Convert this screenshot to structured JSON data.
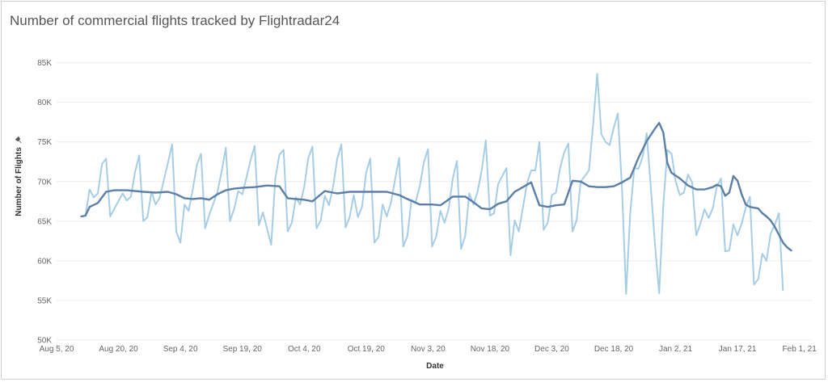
{
  "title": "Number of commercial flights tracked by Flightradar24",
  "chart_data": {
    "type": "line",
    "title": "Number of commercial flights tracked by Flightradar24",
    "xlabel": "Date",
    "ylabel": "Number of Flights",
    "x_range": [
      "2020-08-05",
      "2021-02-04"
    ],
    "ylim": [
      50000,
      87000
    ],
    "y_ticks": [
      50000,
      55000,
      60000,
      65000,
      70000,
      75000,
      80000,
      85000
    ],
    "y_tick_labels": [
      "50K",
      "55K",
      "60K",
      "65K",
      "70K",
      "75K",
      "80K",
      "85K"
    ],
    "x_ticks": [
      "2020-08-05",
      "2020-08-20",
      "2020-09-04",
      "2020-09-19",
      "2020-10-04",
      "2020-10-19",
      "2020-11-03",
      "2020-11-18",
      "2020-12-03",
      "2020-12-18",
      "2021-01-02",
      "2021-01-17",
      "2021-02-01"
    ],
    "x_tick_labels": [
      "Aug 5, 20",
      "Aug 20, 20",
      "Sep 4, 20",
      "Sep 19, 20",
      "Oct 4, 20",
      "Oct 19, 20",
      "Nov 3, 20",
      "Nov 18, 20",
      "Dec 3, 20",
      "Dec 18, 20",
      "Jan 2, 21",
      "Jan 17, 21",
      "Feb 1, 21"
    ],
    "grid": "horizontal",
    "series": [
      {
        "name": "",
        "color": "#a6cde6",
        "points": [
          [
            "2020-08-11",
            65600
          ],
          [
            "2020-08-12",
            65700
          ],
          [
            "2020-08-13",
            69000
          ],
          [
            "2020-08-14",
            68000
          ],
          [
            "2020-08-15",
            68500
          ],
          [
            "2020-08-16",
            72200
          ],
          [
            "2020-08-17",
            72900
          ],
          [
            "2020-08-18",
            65600
          ],
          [
            "2020-08-19",
            66600
          ],
          [
            "2020-08-21",
            68500
          ],
          [
            "2020-08-22",
            67600
          ],
          [
            "2020-08-23",
            68100
          ],
          [
            "2020-08-24",
            71200
          ],
          [
            "2020-08-25",
            73300
          ],
          [
            "2020-08-26",
            65000
          ],
          [
            "2020-08-27",
            65500
          ],
          [
            "2020-08-28",
            68700
          ],
          [
            "2020-08-29",
            67100
          ],
          [
            "2020-08-30",
            68000
          ],
          [
            "2020-09-01",
            72400
          ],
          [
            "2020-09-02",
            74700
          ],
          [
            "2020-09-03",
            63700
          ],
          [
            "2020-09-04",
            62300
          ],
          [
            "2020-09-05",
            67100
          ],
          [
            "2020-09-06",
            66300
          ],
          [
            "2020-09-07",
            69000
          ],
          [
            "2020-09-08",
            72100
          ],
          [
            "2020-09-09",
            73500
          ],
          [
            "2020-09-10",
            64100
          ],
          [
            "2020-09-11",
            65800
          ],
          [
            "2020-09-13",
            68700
          ],
          [
            "2020-09-14",
            71300
          ],
          [
            "2020-09-15",
            74300
          ],
          [
            "2020-09-16",
            65000
          ],
          [
            "2020-09-17",
            66500
          ],
          [
            "2020-09-18",
            68800
          ],
          [
            "2020-09-19",
            68400
          ],
          [
            "2020-09-20",
            70500
          ],
          [
            "2020-09-21",
            72700
          ],
          [
            "2020-09-22",
            74500
          ],
          [
            "2020-09-23",
            64500
          ],
          [
            "2020-09-24",
            66100
          ],
          [
            "2020-09-26",
            62000
          ],
          [
            "2020-09-27",
            70400
          ],
          [
            "2020-09-28",
            73400
          ],
          [
            "2020-09-29",
            74000
          ],
          [
            "2020-09-30",
            63700
          ],
          [
            "2020-10-01",
            64800
          ],
          [
            "2020-10-02",
            68000
          ],
          [
            "2020-10-03",
            67100
          ],
          [
            "2020-10-04",
            69300
          ],
          [
            "2020-10-05",
            73000
          ],
          [
            "2020-10-06",
            74400
          ],
          [
            "2020-10-07",
            64100
          ],
          [
            "2020-10-08",
            65100
          ],
          [
            "2020-10-09",
            68200
          ],
          [
            "2020-10-10",
            67000
          ],
          [
            "2020-10-11",
            69400
          ],
          [
            "2020-10-12",
            72900
          ],
          [
            "2020-10-13",
            74700
          ],
          [
            "2020-10-14",
            64200
          ],
          [
            "2020-10-15",
            65500
          ],
          [
            "2020-10-16",
            68300
          ],
          [
            "2020-10-17",
            65500
          ],
          [
            "2020-10-18",
            66800
          ],
          [
            "2020-10-19",
            71100
          ],
          [
            "2020-10-20",
            72900
          ],
          [
            "2020-10-21",
            62300
          ],
          [
            "2020-10-22",
            63000
          ],
          [
            "2020-10-23",
            67100
          ],
          [
            "2020-10-24",
            65600
          ],
          [
            "2020-10-25",
            67300
          ],
          [
            "2020-10-26",
            70200
          ],
          [
            "2020-10-27",
            73000
          ],
          [
            "2020-10-28",
            61800
          ],
          [
            "2020-10-29",
            63100
          ],
          [
            "2020-10-30",
            67700
          ],
          [
            "2020-10-31",
            67400
          ],
          [
            "2020-11-01",
            69400
          ],
          [
            "2020-11-02",
            72400
          ],
          [
            "2020-11-03",
            74100
          ],
          [
            "2020-11-04",
            61800
          ],
          [
            "2020-11-05",
            63100
          ],
          [
            "2020-11-06",
            66300
          ],
          [
            "2020-11-07",
            64800
          ],
          [
            "2020-11-08",
            66600
          ],
          [
            "2020-11-09",
            70400
          ],
          [
            "2020-11-10",
            72600
          ],
          [
            "2020-11-11",
            61500
          ],
          [
            "2020-11-12",
            63100
          ],
          [
            "2020-11-13",
            68500
          ],
          [
            "2020-11-14",
            67100
          ],
          [
            "2020-11-15",
            68700
          ],
          [
            "2020-11-16",
            71400
          ],
          [
            "2020-11-17",
            75200
          ],
          [
            "2020-11-18",
            65700
          ],
          [
            "2020-11-19",
            66000
          ],
          [
            "2020-11-20",
            69700
          ],
          [
            "2020-11-21",
            70700
          ],
          [
            "2020-11-22",
            71700
          ],
          [
            "2020-11-23",
            60700
          ],
          [
            "2020-11-24",
            65100
          ],
          [
            "2020-11-25",
            63700
          ],
          [
            "2020-11-26",
            66700
          ],
          [
            "2020-11-27",
            69800
          ],
          [
            "2020-11-28",
            71400
          ],
          [
            "2020-11-29",
            71400
          ],
          [
            "2020-11-30",
            75000
          ],
          [
            "2020-12-01",
            63900
          ],
          [
            "2020-12-02",
            64800
          ],
          [
            "2020-12-03",
            68300
          ],
          [
            "2020-12-04",
            68600
          ],
          [
            "2020-12-05",
            71700
          ],
          [
            "2020-12-06",
            73700
          ],
          [
            "2020-12-07",
            74800
          ],
          [
            "2020-12-08",
            63700
          ],
          [
            "2020-12-09",
            65100
          ],
          [
            "2020-12-10",
            70000
          ],
          [
            "2020-12-11",
            70700
          ],
          [
            "2020-12-12",
            71400
          ],
          [
            "2020-12-13",
            77200
          ],
          [
            "2020-12-14",
            83600
          ],
          [
            "2020-12-15",
            76000
          ],
          [
            "2020-12-16",
            75000
          ],
          [
            "2020-12-17",
            74600
          ],
          [
            "2020-12-18",
            76800
          ],
          [
            "2020-12-19",
            78600
          ],
          [
            "2020-12-20",
            69200
          ],
          [
            "2020-12-21",
            55800
          ],
          [
            "2020-12-22",
            66000
          ],
          [
            "2020-12-23",
            71700
          ],
          [
            "2020-12-24",
            71600
          ],
          [
            "2020-12-25",
            73100
          ],
          [
            "2020-12-26",
            76100
          ],
          [
            "2020-12-27",
            69100
          ],
          [
            "2020-12-28",
            62000
          ],
          [
            "2020-12-29",
            55900
          ],
          [
            "2020-12-30",
            67000
          ],
          [
            "2020-12-31",
            74000
          ],
          [
            "2021-01-01",
            73500
          ],
          [
            "2021-01-02",
            70000
          ],
          [
            "2021-01-03",
            68300
          ],
          [
            "2021-01-04",
            68600
          ],
          [
            "2021-01-05",
            70900
          ],
          [
            "2021-01-06",
            69900
          ],
          [
            "2021-01-07",
            63200
          ],
          [
            "2021-01-08",
            64700
          ],
          [
            "2021-01-09",
            66500
          ],
          [
            "2021-01-10",
            65400
          ],
          [
            "2021-01-11",
            66600
          ],
          [
            "2021-01-12",
            69400
          ],
          [
            "2021-01-13",
            70400
          ],
          [
            "2021-01-14",
            61200
          ],
          [
            "2021-01-15",
            61300
          ],
          [
            "2021-01-16",
            64600
          ],
          [
            "2021-01-17",
            63200
          ],
          [
            "2021-01-18",
            64700
          ],
          [
            "2021-01-19",
            66700
          ],
          [
            "2021-01-20",
            68100
          ],
          [
            "2021-01-21",
            57000
          ],
          [
            "2021-01-22",
            57700
          ],
          [
            "2021-01-23",
            60900
          ],
          [
            "2021-01-24",
            60000
          ],
          [
            "2021-01-25",
            63400
          ],
          [
            "2021-01-26",
            64500
          ],
          [
            "2021-01-27",
            66000
          ],
          [
            "2021-01-28",
            56300
          ]
        ]
      },
      {
        "name": "",
        "color": "#5b7fa6",
        "points": [
          [
            "2020-08-11",
            65600
          ],
          [
            "2020-08-12",
            65700
          ],
          [
            "2020-08-13",
            66800
          ],
          [
            "2020-08-15",
            67300
          ],
          [
            "2020-08-17",
            68700
          ],
          [
            "2020-08-19",
            68900
          ],
          [
            "2020-08-22",
            68900
          ],
          [
            "2020-08-26",
            68700
          ],
          [
            "2020-08-29",
            68600
          ],
          [
            "2020-09-01",
            68700
          ],
          [
            "2020-09-03",
            68400
          ],
          [
            "2020-09-05",
            67900
          ],
          [
            "2020-09-07",
            67800
          ],
          [
            "2020-09-09",
            67900
          ],
          [
            "2020-09-11",
            67700
          ],
          [
            "2020-09-13",
            68400
          ],
          [
            "2020-09-15",
            68900
          ],
          [
            "2020-09-17",
            69100
          ],
          [
            "2020-09-19",
            69200
          ],
          [
            "2020-09-22",
            69300
          ],
          [
            "2020-09-25",
            69500
          ],
          [
            "2020-09-28",
            69400
          ],
          [
            "2020-09-30",
            67900
          ],
          [
            "2020-10-02",
            67800
          ],
          [
            "2020-10-04",
            67700
          ],
          [
            "2020-10-06",
            67500
          ],
          [
            "2020-10-09",
            68800
          ],
          [
            "2020-10-12",
            68500
          ],
          [
            "2020-10-15",
            68700
          ],
          [
            "2020-10-18",
            68700
          ],
          [
            "2020-10-21",
            68700
          ],
          [
            "2020-10-24",
            68700
          ],
          [
            "2020-10-27",
            68300
          ],
          [
            "2020-10-29",
            67800
          ],
          [
            "2020-11-01",
            67100
          ],
          [
            "2020-11-04",
            67100
          ],
          [
            "2020-11-06",
            67000
          ],
          [
            "2020-11-09",
            68100
          ],
          [
            "2020-11-12",
            68100
          ],
          [
            "2020-11-14",
            67400
          ],
          [
            "2020-11-16",
            66600
          ],
          [
            "2020-11-18",
            66500
          ],
          [
            "2020-11-20",
            67200
          ],
          [
            "2020-11-22",
            67500
          ],
          [
            "2020-11-24",
            68700
          ],
          [
            "2020-11-26",
            69300
          ],
          [
            "2020-11-28",
            69900
          ],
          [
            "2020-11-30",
            67000
          ],
          [
            "2020-12-02",
            66800
          ],
          [
            "2020-12-04",
            67000
          ],
          [
            "2020-12-06",
            67100
          ],
          [
            "2020-12-08",
            70100
          ],
          [
            "2020-12-10",
            70000
          ],
          [
            "2020-12-12",
            69400
          ],
          [
            "2020-12-14",
            69300
          ],
          [
            "2020-12-16",
            69300
          ],
          [
            "2020-12-18",
            69400
          ],
          [
            "2020-12-20",
            69900
          ],
          [
            "2020-12-22",
            70500
          ],
          [
            "2020-12-24",
            73000
          ],
          [
            "2020-12-26",
            75100
          ],
          [
            "2020-12-28",
            76700
          ],
          [
            "2020-12-29",
            77400
          ],
          [
            "2020-12-30",
            76200
          ],
          [
            "2020-12-31",
            72300
          ],
          [
            "2021-01-01",
            71100
          ],
          [
            "2021-01-03",
            70400
          ],
          [
            "2021-01-05",
            69500
          ],
          [
            "2021-01-07",
            69000
          ],
          [
            "2021-01-09",
            69000
          ],
          [
            "2021-01-11",
            69300
          ],
          [
            "2021-01-12",
            69600
          ],
          [
            "2021-01-13",
            69400
          ],
          [
            "2021-01-14",
            68200
          ],
          [
            "2021-01-15",
            68600
          ],
          [
            "2021-01-16",
            70700
          ],
          [
            "2021-01-17",
            70100
          ],
          [
            "2021-01-18",
            68400
          ],
          [
            "2021-01-19",
            67100
          ],
          [
            "2021-01-20",
            66800
          ],
          [
            "2021-01-21",
            66700
          ],
          [
            "2021-01-22",
            66600
          ],
          [
            "2021-01-23",
            66000
          ],
          [
            "2021-01-24",
            65600
          ],
          [
            "2021-01-25",
            65100
          ],
          [
            "2021-01-26",
            64300
          ],
          [
            "2021-01-27",
            63300
          ],
          [
            "2021-01-28",
            62300
          ],
          [
            "2021-01-29",
            61700
          ],
          [
            "2021-01-30",
            61300
          ]
        ]
      }
    ]
  }
}
